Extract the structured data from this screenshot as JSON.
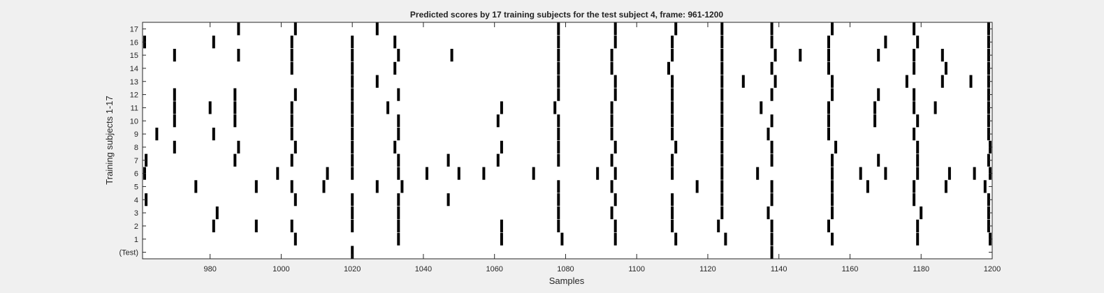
{
  "chart_data": {
    "type": "heatmap",
    "title": "Predicted scores by 17 training subjects for the test subject 4, frame: 961-1200",
    "xlabel": "Samples",
    "ylabel": "Training subjects 1-17",
    "xlim": [
      961,
      1200
    ],
    "xticks": [
      980,
      1000,
      1020,
      1040,
      1060,
      1080,
      1100,
      1120,
      1140,
      1160,
      1180,
      1200
    ],
    "yticklabels": [
      "(Test)",
      "1",
      "2",
      "3",
      "4",
      "5",
      "6",
      "7",
      "8",
      "9",
      "10",
      "11",
      "12",
      "13",
      "14",
      "15",
      "16",
      "17"
    ],
    "grid": false,
    "rows": [
      {
        "label": "(Test)",
        "x": [
          1020,
          1138
        ]
      },
      {
        "label": "1",
        "x": [
          1004,
          1033,
          1062,
          1079,
          1094,
          1111,
          1125,
          1138,
          1155,
          1179,
          1200
        ]
      },
      {
        "label": "2",
        "x": [
          981,
          993,
          1003,
          1020,
          1033,
          1062,
          1078,
          1094,
          1110,
          1123,
          1138,
          1154,
          1179,
          1199
        ]
      },
      {
        "label": "3",
        "x": [
          982,
          1020,
          1033,
          1078,
          1093,
          1110,
          1124,
          1137,
          1155,
          1180,
          1199
        ]
      },
      {
        "label": "4",
        "x": [
          962,
          1004,
          1020,
          1033,
          1047,
          1078,
          1094,
          1110,
          1124,
          1138,
          1155,
          1178,
          1199
        ]
      },
      {
        "label": "5",
        "x": [
          976,
          993,
          1003,
          1012,
          1027,
          1034,
          1078,
          1093,
          1117,
          1124,
          1138,
          1155,
          1165,
          1178,
          1187,
          1198
        ]
      },
      {
        "label": "6",
        "x": [
          961,
          999,
          1013,
          1020,
          1033,
          1041,
          1050,
          1057,
          1071,
          1089,
          1094,
          1110,
          1124,
          1134,
          1155,
          1163,
          1170,
          1179,
          1188,
          1195,
          1200
        ]
      },
      {
        "label": "7",
        "x": [
          962,
          987,
          1003,
          1020,
          1033,
          1047,
          1061,
          1078,
          1093,
          1110,
          1124,
          1138,
          1155,
          1168,
          1179,
          1199
        ]
      },
      {
        "label": "8",
        "x": [
          970,
          988,
          1004,
          1020,
          1032,
          1062,
          1078,
          1094,
          1111,
          1124,
          1138,
          1156,
          1179,
          1200
        ]
      },
      {
        "label": "9",
        "x": [
          965,
          981,
          1003,
          1020,
          1033,
          1078,
          1093,
          1110,
          1124,
          1137,
          1154,
          1178,
          1199
        ]
      },
      {
        "label": "10",
        "x": [
          970,
          987,
          1003,
          1020,
          1033,
          1061,
          1078,
          1093,
          1110,
          1124,
          1138,
          1154,
          1167,
          1179,
          1199
        ]
      },
      {
        "label": "11",
        "x": [
          970,
          980,
          987,
          1003,
          1020,
          1030,
          1062,
          1077,
          1093,
          1110,
          1124,
          1135,
          1154,
          1167,
          1178,
          1184,
          1199
        ]
      },
      {
        "label": "12",
        "x": [
          970,
          987,
          1004,
          1020,
          1033,
          1078,
          1094,
          1110,
          1124,
          1138,
          1155,
          1168,
          1178,
          1199
        ]
      },
      {
        "label": "13",
        "x": [
          1020,
          1027,
          1078,
          1094,
          1110,
          1124,
          1130,
          1139,
          1155,
          1176,
          1186,
          1194,
          1199
        ]
      },
      {
        "label": "14",
        "x": [
          1003,
          1020,
          1032,
          1078,
          1093,
          1109,
          1124,
          1138,
          1154,
          1178,
          1187,
          1199
        ]
      },
      {
        "label": "15",
        "x": [
          970,
          988,
          1003,
          1020,
          1033,
          1048,
          1078,
          1093,
          1110,
          1124,
          1139,
          1146,
          1154,
          1168,
          1178,
          1186,
          1199
        ]
      },
      {
        "label": "16",
        "x": [
          961,
          981,
          1003,
          1020,
          1032,
          1078,
          1094,
          1110,
          1124,
          1138,
          1154,
          1170,
          1179,
          1199
        ]
      },
      {
        "label": "17",
        "x": [
          988,
          1004,
          1027,
          1078,
          1094,
          1111,
          1124,
          1138,
          1155,
          1178,
          1199
        ]
      }
    ]
  }
}
